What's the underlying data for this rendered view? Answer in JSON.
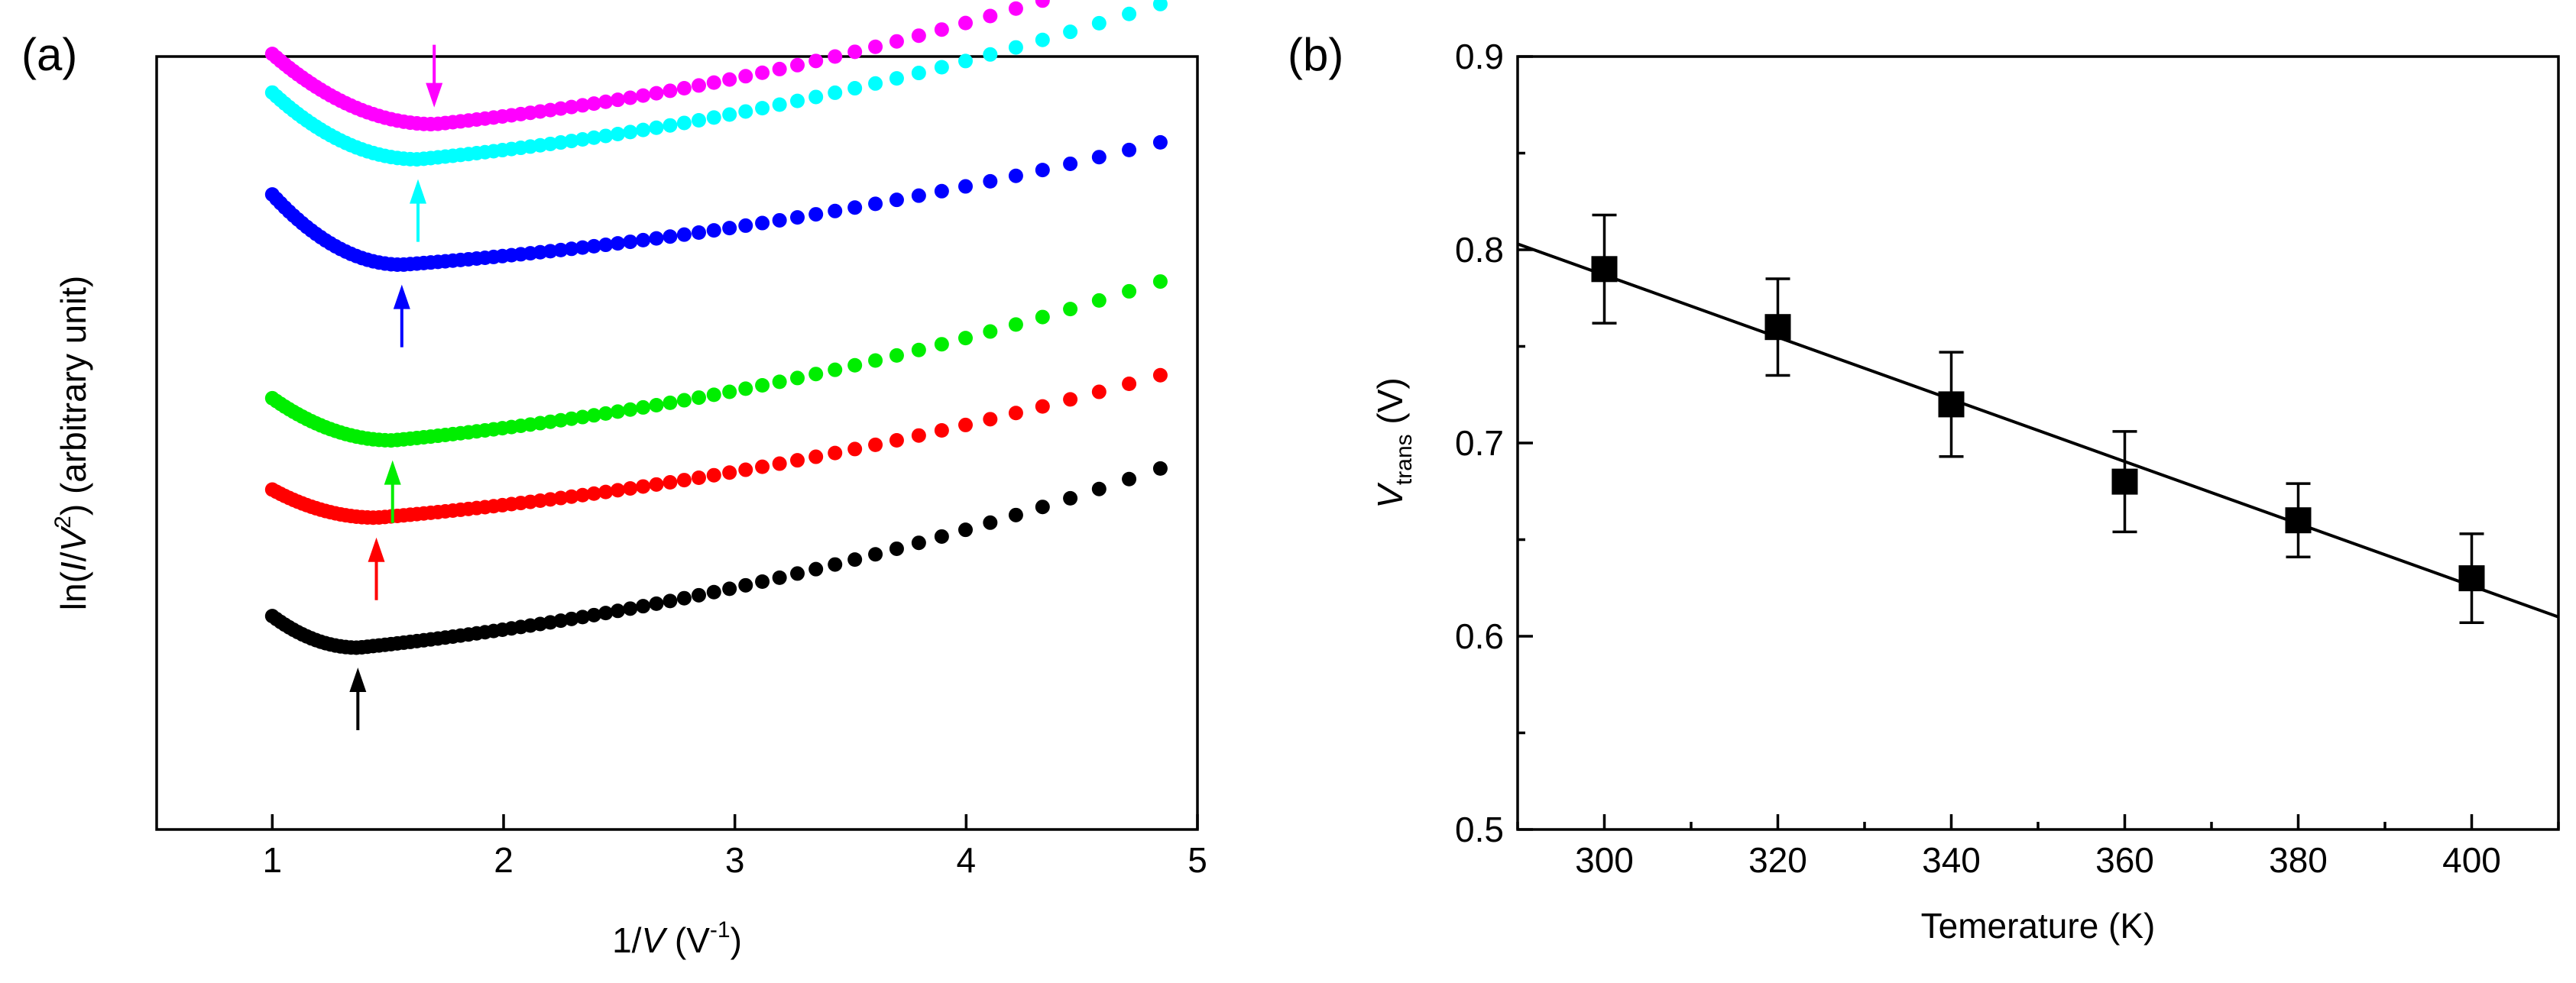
{
  "chart_data": [
    {
      "panel_label": "(a)",
      "type": "scatter",
      "xlabel": "1/V (V⁻¹)",
      "xlabel_parts": {
        "prefix": "1/",
        "var": "V",
        "unit_open": " (V",
        "unit_exp": "-1",
        "unit_close": ")"
      },
      "ylabel": "ln(I/V²) (arbitrary unit)",
      "ylabel_parts": {
        "prefix": "ln(",
        "var1": "I",
        "slash": "/",
        "var2": "V",
        "exp": "2",
        "suffix": ") (arbitrary unit)"
      },
      "xlim": [
        0.5,
        5.0
      ],
      "ylim": [
        0,
        10
      ],
      "xticks": [
        "1",
        "2",
        "3",
        "4",
        "5"
      ],
      "yticks_shown": false,
      "series": [
        {
          "name": "black",
          "color": "#000000",
          "y_start": 1.45,
          "x_min": 1.37,
          "y_min": 1.0,
          "y_end": 3.7,
          "arrow_x": 1.37,
          "arrow_dir": "up"
        },
        {
          "name": "red",
          "color": "#ff0000",
          "y_start": 3.25,
          "x_min": 1.45,
          "y_min": 2.85,
          "y_end": 5.0,
          "arrow_x": 1.45,
          "arrow_dir": "up"
        },
        {
          "name": "green",
          "color": "#00ee00",
          "y_start": 4.55,
          "x_min": 1.52,
          "y_min": 3.95,
          "y_end": 6.35,
          "arrow_x": 1.52,
          "arrow_dir": "up"
        },
        {
          "name": "blue",
          "color": "#0000ff",
          "y_start": 7.45,
          "x_min": 1.56,
          "y_min": 6.45,
          "y_end": 8.3,
          "arrow_x": 1.56,
          "arrow_dir": "up"
        },
        {
          "name": "cyan",
          "color": "#00ffff",
          "y_start": 8.9,
          "x_min": 1.63,
          "y_min": 7.95,
          "y_end": 10.3,
          "arrow_x": 1.63,
          "arrow_dir": "up"
        },
        {
          "name": "magenta",
          "color": "#ff00ff",
          "y_start": 9.45,
          "x_min": 1.7,
          "y_min": 8.45,
          "y_end": 10.9,
          "arrow_x": 1.7,
          "arrow_dir": "down"
        }
      ]
    },
    {
      "panel_label": "(b)",
      "type": "scatter",
      "xlabel": "Temerature (K)",
      "ylabel": "V_trans (V)",
      "ylabel_parts": {
        "var": "V",
        "sub": "trans",
        "unit": " (V)"
      },
      "xlim": [
        290,
        410
      ],
      "ylim": [
        0.5,
        0.9
      ],
      "xticks": [
        300,
        320,
        340,
        360,
        380,
        400
      ],
      "yticks": [
        0.5,
        0.6,
        0.7,
        0.8,
        0.9
      ],
      "points": [
        {
          "x": 300,
          "y": 0.79,
          "err": 0.028
        },
        {
          "x": 320,
          "y": 0.76,
          "err": 0.025
        },
        {
          "x": 340,
          "y": 0.72,
          "err": 0.027
        },
        {
          "x": 360,
          "y": 0.68,
          "err": 0.026
        },
        {
          "x": 380,
          "y": 0.66,
          "err": 0.019
        },
        {
          "x": 400,
          "y": 0.63,
          "err": 0.023
        }
      ],
      "fit_line": {
        "x": [
          290,
          410
        ],
        "y": [
          0.803,
          0.61
        ]
      }
    }
  ]
}
